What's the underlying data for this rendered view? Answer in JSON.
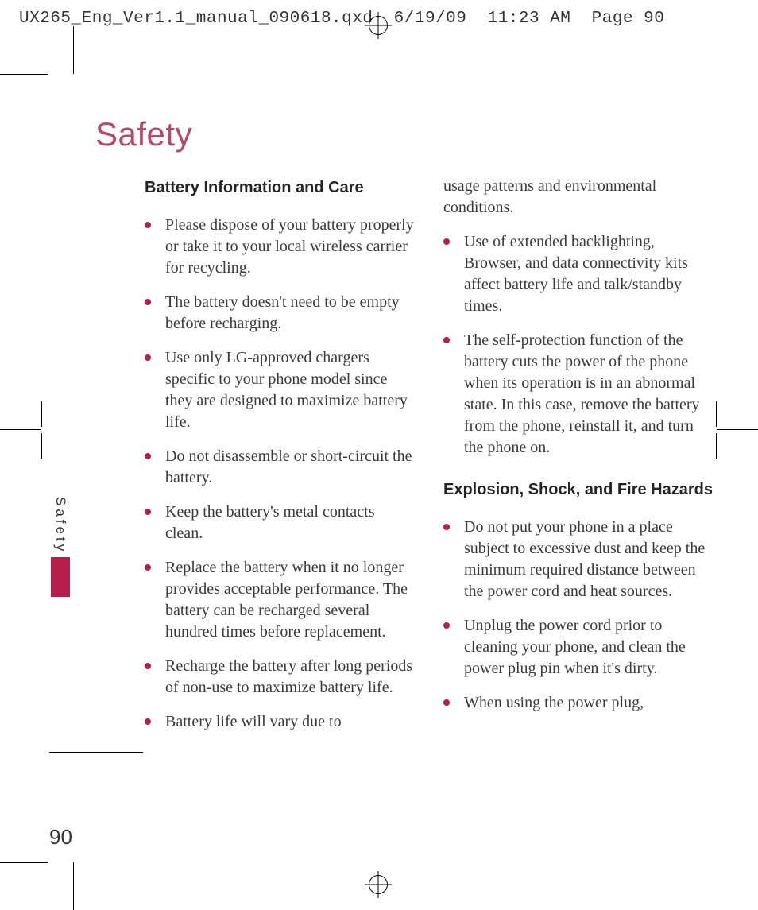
{
  "print_header": "UX265_Eng_Ver1.1_manual_090618.qxd  6/19/09  11:23 AM  Page 90",
  "page_title": "Safety",
  "side_tab": "Safety",
  "page_number": "90",
  "accent_color": "#b61f49",
  "title_color": "#b54a6a",
  "text_color": "#3a3a3a",
  "heading_color": "#242424",
  "background_color": "#ffffff",
  "font_sizes": {
    "title": 42,
    "heading": 20,
    "body": 20,
    "page_num": 26,
    "header": 21,
    "side_tab": 17
  },
  "col1": {
    "heading": "Battery Information and Care",
    "items": [
      "Please dispose of your battery properly or take it to your local wireless carrier for recycling.",
      "The battery doesn't need to be empty before recharging.",
      "Use only LG-approved chargers specific to your phone model since they are designed to maximize battery life.",
      "Do not disassemble or short-circuit the battery.",
      "Keep the battery's metal contacts clean.",
      "Replace the battery when it no longer provides acceptable performance. The battery can be recharged several hundred times before replacement.",
      "Recharge the battery after long periods of non-use to maximize battery life.",
      "Battery life will vary due to"
    ]
  },
  "col2": {
    "continuation": "usage patterns and environmental conditions.",
    "items_a": [
      "Use of extended backlighting, Browser, and data connectivity kits affect battery life and talk/standby times.",
      "The self-protection function of the battery cuts the power of the phone when its operation is in an abnormal state. In this case, remove the battery from the phone, reinstall it, and turn the phone on."
    ],
    "heading": "Explosion, Shock, and Fire Hazards",
    "items_b": [
      "Do not put your phone in a place subject to excessive dust and keep the minimum required distance between the power cord and heat sources.",
      "Unplug the power cord prior to cleaning your phone, and clean the power plug pin when it's dirty.",
      "When using the power plug,"
    ]
  }
}
